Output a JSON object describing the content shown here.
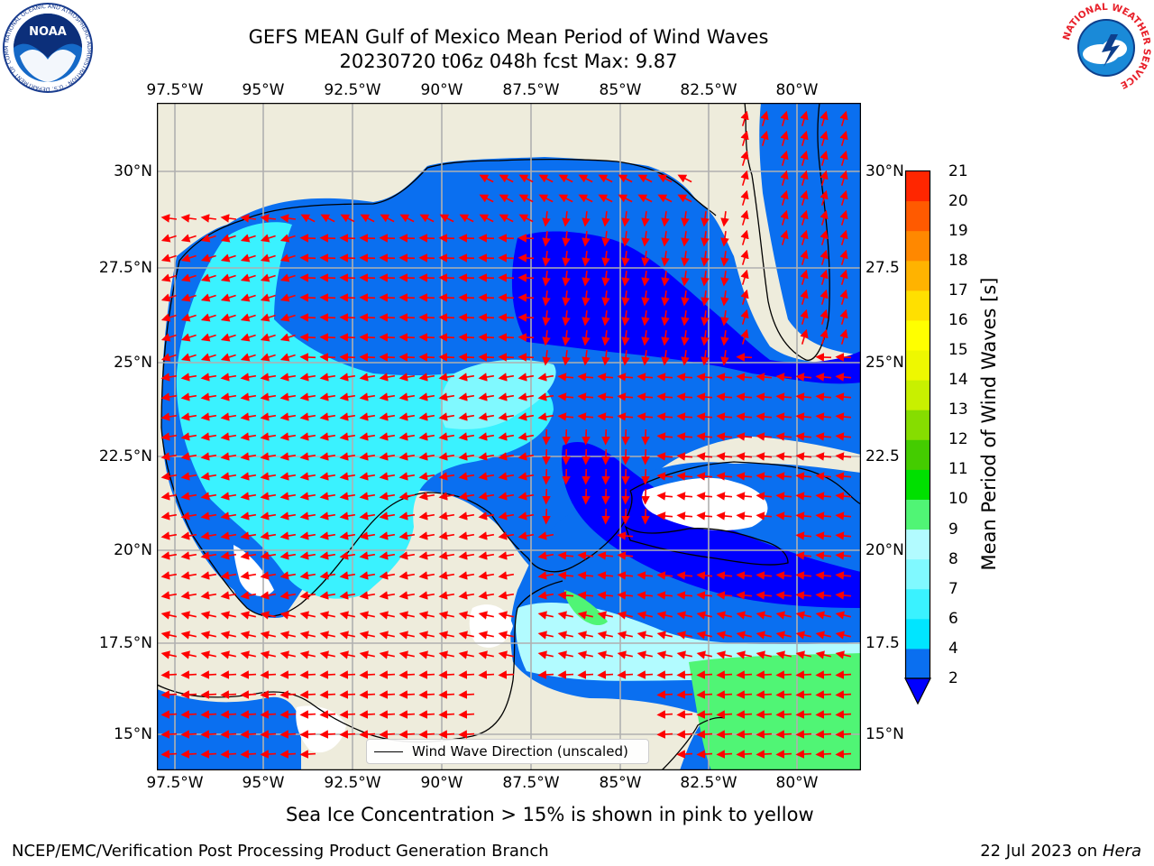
{
  "title": {
    "line1": "GEFS MEAN Gulf of Mexico Mean Period of Wind Waves",
    "line2": "20230720 t06z 048h fcst   Max: 9.87"
  },
  "map": {
    "lon_labels": [
      "97.5°W",
      "95°W",
      "92.5°W",
      "90°W",
      "87.5°W",
      "85°W",
      "82.5°W",
      "80°W"
    ],
    "lat_labels_left": [
      "30°N",
      "27.5°N",
      "25°N",
      "22.5°N",
      "20°N",
      "17.5°N",
      "15°N"
    ],
    "lat_labels_right": [
      "30°N",
      "27.5",
      "25°N",
      "22.5",
      "20°N",
      "17.5",
      "15°N"
    ],
    "lon_range": [
      -98,
      -78.3
    ],
    "lat_range": [
      14,
      31.6
    ],
    "colors": {
      "land": "#eeecdc",
      "no_data": "#ffffff",
      "arrow": "#ff0000",
      "grid": "#b0b0b0"
    },
    "legend_label": "Wind Wave Direction (unscaled)"
  },
  "colorbar": {
    "label": "Mean Period of Wind Waves [s]",
    "ticks": [
      "2",
      "4",
      "6",
      "7",
      "8",
      "9",
      "10",
      "11",
      "12",
      "13",
      "14",
      "15",
      "16",
      "17",
      "18",
      "19",
      "20",
      "21"
    ],
    "colors": [
      "#0a6ff0",
      "#00e5ff",
      "#3af2ff",
      "#80f9ff",
      "#b2fbff",
      "#50f575",
      "#00e000",
      "#44cc00",
      "#86dd00",
      "#c8f000",
      "#eef800",
      "#ffff00",
      "#ffe000",
      "#ffb300",
      "#ff8800",
      "#ff5a00",
      "#ff2600"
    ],
    "extend_color": "#0000ff"
  },
  "footer": {
    "sea_ice_note": "Sea Ice Concentration > 15% is shown in pink to yellow",
    "branch": "NCEP/EMC/Verification Post Processing Product Generation Branch",
    "date": "22 Jul 2023 on",
    "machine": "Hera"
  },
  "logos": {
    "noaa": "NOAA",
    "noaa_ring": "NATIONAL OCEANIC AND ATMOSPHERIC ADMINISTRATION · U.S. DEPARTMENT OF COMMERCE",
    "nws_ring": "NATIONAL WEATHER SERVICE"
  }
}
